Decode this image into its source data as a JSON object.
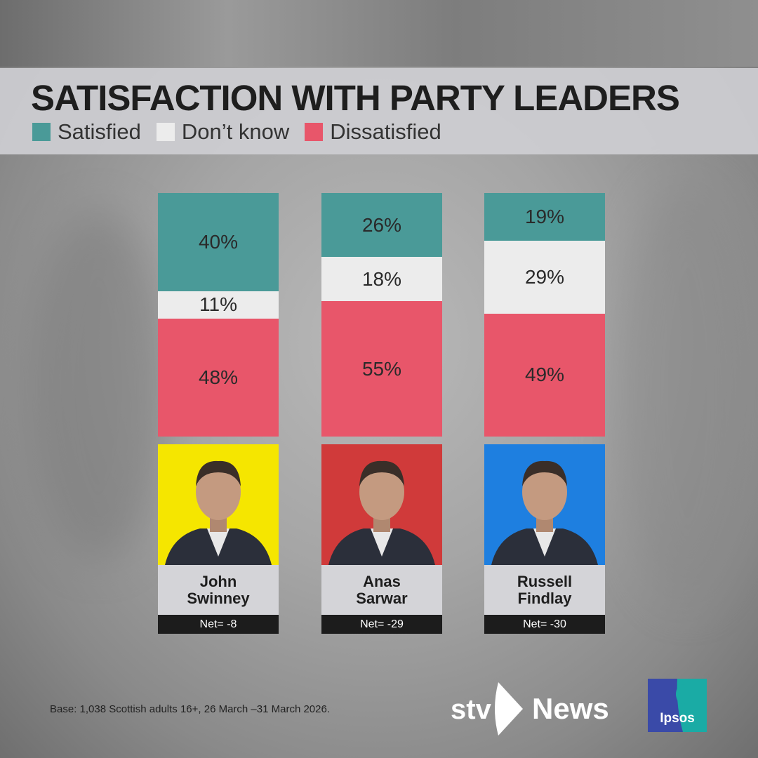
{
  "title": "SATISFACTION WITH PARTY LEADERS",
  "legend": [
    {
      "label": "Satisfied",
      "color": "#4a9a98"
    },
    {
      "label": "Don’t know",
      "color": "#ececec"
    },
    {
      "label": "Dissatisfied",
      "color": "#e8566a"
    }
  ],
  "chart_data": {
    "type": "bar",
    "stacked": true,
    "title": "SATISFACTION WITH PARTY LEADERS",
    "categories": [
      "John Swinney",
      "Anas Sarwar",
      "Russell Findlay"
    ],
    "series": [
      {
        "name": "Satisfied",
        "values": [
          40,
          26,
          19
        ],
        "color": "#4a9a98"
      },
      {
        "name": "Don’t know",
        "values": [
          11,
          18,
          29
        ],
        "color": "#ececec"
      },
      {
        "name": "Dissatisfied",
        "values": [
          48,
          55,
          49
        ],
        "color": "#e8566a"
      }
    ],
    "data_labels": [
      [
        "40%",
        "11%",
        "48%"
      ],
      [
        "26%",
        "18%",
        "55%"
      ],
      [
        "19%",
        "29%",
        "49%"
      ]
    ],
    "net": [
      "Net= -8",
      "Net= -29",
      "Net= -30"
    ]
  },
  "leaders": [
    {
      "first": "John",
      "last": "Swinney",
      "bg": "#f5e600"
    },
    {
      "first": "Anas",
      "last": "Sarwar",
      "bg": "#d03a3a"
    },
    {
      "first": "Russell",
      "last": "Findlay",
      "bg": "#1e7fe0"
    }
  ],
  "footer": {
    "base": "Base: 1,038 Scottish adults 16+, 26 March –31 March 2026.",
    "stv_logo": "stv News",
    "ipsos_logo": "Ipsos"
  }
}
